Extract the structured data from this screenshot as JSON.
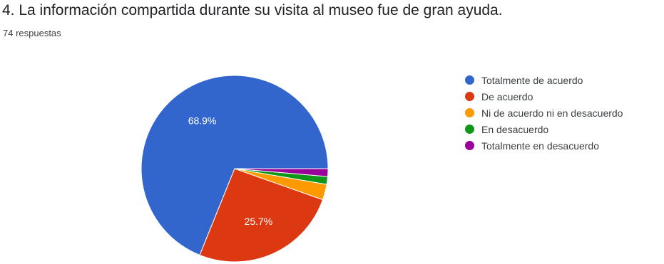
{
  "question": {
    "title": "4. La información compartida durante su visita al museo fue de gran ayuda.",
    "responses": "74 respuestas"
  },
  "chart_data": {
    "type": "pie",
    "categories": [
      "Totalmente de acuerdo",
      "De acuerdo",
      "Ni de acuerdo ni en desacuerdo",
      "En desacuerdo",
      "Totalmente en desacuerdo"
    ],
    "values": [
      68.9,
      25.7,
      2.7,
      1.35,
      1.35
    ],
    "labels": [
      "68.9%",
      "25.7%",
      "",
      "",
      ""
    ],
    "colors": [
      "#3366cc",
      "#dc3912",
      "#ff9900",
      "#109618",
      "#990099"
    ],
    "legend_position": "right"
  }
}
